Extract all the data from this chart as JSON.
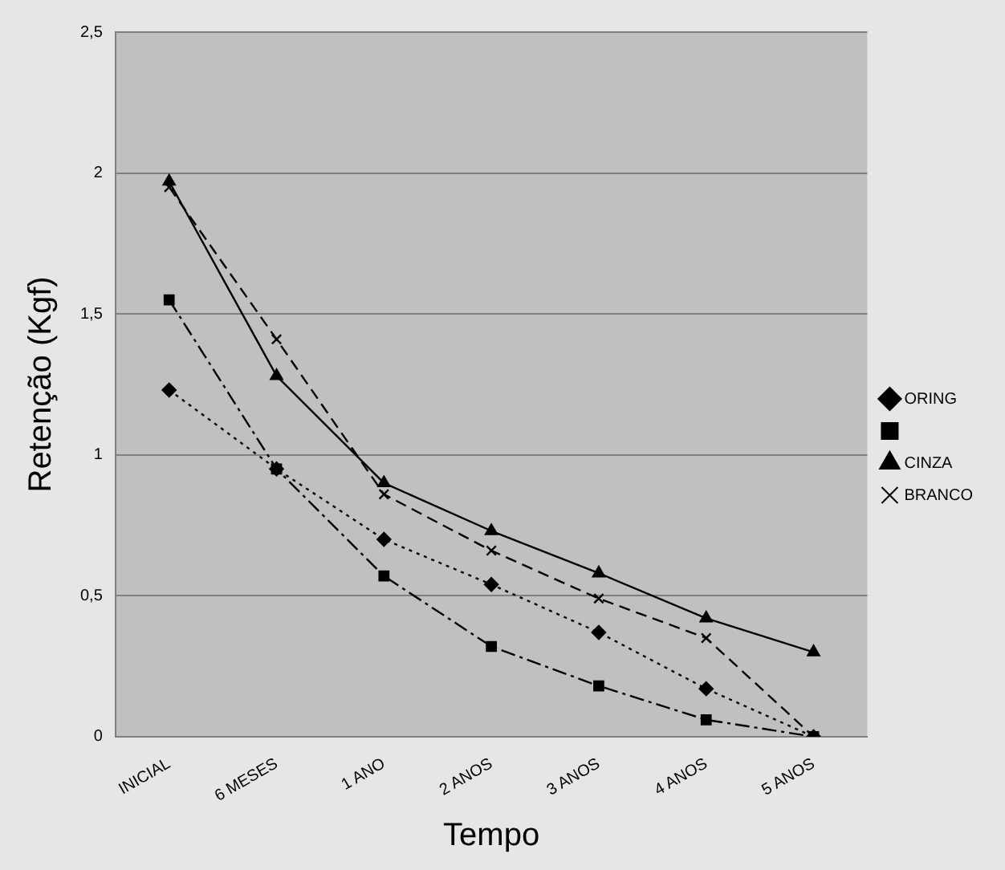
{
  "chart_data": {
    "type": "line",
    "xlabel": "Tempo",
    "ylabel": "Retenção (Kgf)",
    "categories": [
      "INICIAL",
      "6 MESES",
      "1 ANO",
      "2 ANOS",
      "3 ANOS",
      "4 ANOS",
      "5 ANOS"
    ],
    "series": [
      {
        "name": "ORING",
        "color": "#000000",
        "marker": "diamond",
        "line_style": "dotted",
        "values": [
          1.23,
          0.95,
          0.7,
          0.54,
          0.37,
          0.17,
          0
        ]
      },
      {
        "color": "#000000",
        "marker": "square",
        "line_style": "dashdot",
        "values": [
          1.55,
          0.95,
          0.57,
          0.32,
          0.18,
          0.06,
          0
        ]
      },
      {
        "name": "CINZA",
        "color": "#000000",
        "marker": "triangle",
        "line_style": "solid",
        "values": [
          1.97,
          1.28,
          0.9,
          0.73,
          0.58,
          0.42,
          0.3
        ]
      },
      {
        "name": "BRANCO",
        "color": "#000000",
        "marker": "cross",
        "line_style": "dashed",
        "values": [
          1.95,
          1.41,
          0.86,
          0.66,
          0.49,
          0.35,
          0
        ]
      }
    ],
    "ylim": [
      0,
      2.5
    ],
    "yticks": [
      0,
      {
        "value": 0.5,
        "label": "0,5"
      },
      1,
      {
        "value": 1.5,
        "label": "1,5"
      },
      2,
      {
        "value": 2.5,
        "label": "2,5"
      }
    ],
    "grid": "y",
    "legend": "right"
  }
}
